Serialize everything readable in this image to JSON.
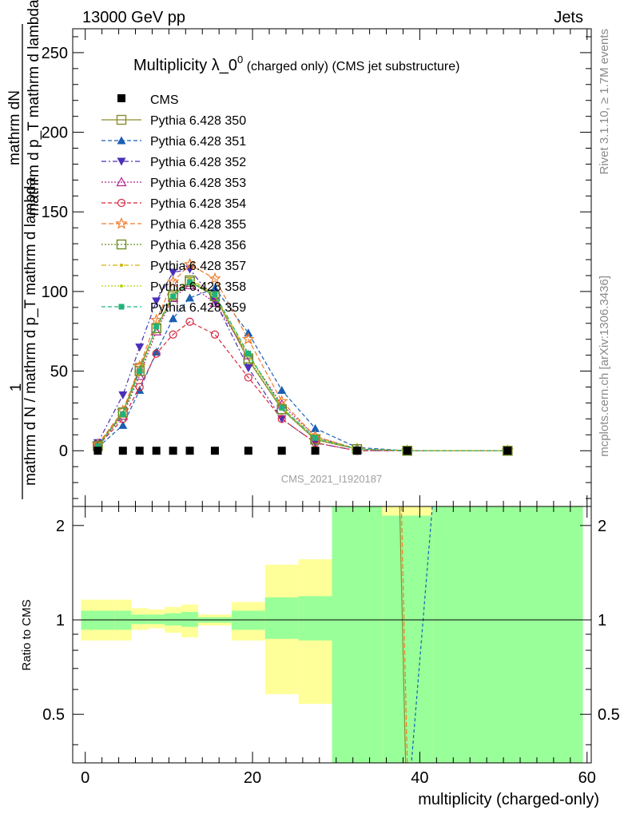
{
  "header": {
    "energy_label": "13000 GeV pp",
    "category_label": "Jets"
  },
  "side_labels": {
    "rivet": "Rivet 3.1.10, ≥ 1.7M events",
    "mcplots": "mcplots.cern.ch [arXiv:1306.3436]"
  },
  "chart_data": [
    {
      "type": "scatter",
      "title_main": "Multiplicity λ_0",
      "title_sup": "0",
      "title_note": " (charged only) (CMS jet substructure)",
      "ylabel_top": "mathrm dN",
      "ylabel_left": "mathrm d p_T mathrm d lambda",
      "ylabel_one": "1",
      "ylabel_bottom": "mathrm d N / mathrm d p_T mathrm d lambda",
      "watermark": "CMS_2021_I1920187",
      "xlim": [
        -1.5,
        60.5
      ],
      "ylim": [
        -35,
        265
      ],
      "yticks": [
        0,
        50,
        100,
        150,
        200,
        250
      ],
      "data_series": {
        "name": "CMS",
        "x": [
          1.5,
          4.5,
          6.5,
          8.5,
          10.5,
          12.5,
          15.5,
          19.5,
          23.5,
          27.5,
          32.5,
          38.5,
          50.5
        ],
        "y": [
          0,
          0,
          0,
          0,
          0,
          0,
          0,
          0,
          0,
          0,
          0,
          0,
          0
        ]
      },
      "x": [
        1.5,
        4.5,
        6.5,
        8.5,
        10.5,
        12.5,
        15.5,
        19.5,
        23.5,
        27.5,
        32.5,
        38.5,
        50.5
      ],
      "series": [
        {
          "name": "Pythia 6.428 350",
          "color": "#8c8c2e",
          "dash": "",
          "marker": "square-open",
          "values": [
            3,
            24,
            52,
            77,
            97,
            106,
            97,
            57,
            26,
            7,
            1,
            0,
            0
          ]
        },
        {
          "name": "Pythia 6.428 351",
          "color": "#1a5fb4",
          "dash": "5,3",
          "marker": "triangle-up",
          "values": [
            2,
            16,
            38,
            62,
            83,
            96,
            102,
            74,
            38,
            14,
            2,
            0,
            0
          ]
        },
        {
          "name": "Pythia 6.428 352",
          "color": "#4b2fb8",
          "dash": "6,3,2,3",
          "marker": "triangle-down",
          "values": [
            5,
            35,
            65,
            94,
            112,
            114,
            94,
            52,
            20,
            5,
            0,
            0,
            0
          ]
        },
        {
          "name": "Pythia 6.428 353",
          "color": "#b2258f",
          "dash": "2,2",
          "marker": "triangle-open",
          "values": [
            3,
            22,
            47,
            75,
            96,
            104,
            93,
            60,
            29,
            9,
            1,
            0,
            0
          ]
        },
        {
          "name": "Pythia 6.428 354",
          "color": "#d7263d",
          "dash": "5,3",
          "marker": "circle-open",
          "values": [
            3,
            20,
            40,
            61,
            73,
            81,
            73,
            46,
            20,
            5,
            0,
            0,
            0
          ]
        },
        {
          "name": "Pythia 6.428 355",
          "color": "#f07b2a",
          "dash": "6,3",
          "marker": "star-open",
          "values": [
            4,
            25,
            53,
            82,
            106,
            117,
            108,
            70,
            31,
            9,
            1,
            0,
            0
          ]
        },
        {
          "name": "Pythia 6.428 356",
          "color": "#6b8e23",
          "dash": "2,2",
          "marker": "square-open",
          "values": [
            3,
            24,
            50,
            77,
            98,
            107,
            97,
            58,
            26,
            7,
            1,
            0,
            0
          ]
        },
        {
          "name": "Pythia 6.428 357",
          "color": "#d4b106",
          "dash": "6,3,2,3",
          "marker": "dot",
          "values": [
            3,
            23,
            50,
            78,
            98,
            108,
            98,
            60,
            27,
            8,
            1,
            0,
            0
          ]
        },
        {
          "name": "Pythia 6.428 358",
          "color": "#b5d415",
          "dash": "2,2",
          "marker": "dot",
          "values": [
            3,
            23,
            49,
            77,
            97,
            106,
            97,
            60,
            27,
            8,
            1,
            0,
            0
          ]
        },
        {
          "name": "Pythia 6.428 359",
          "color": "#20b37a",
          "dash": "5,3",
          "marker": "square",
          "values": [
            3,
            23,
            50,
            78,
            97,
            106,
            98,
            61,
            27,
            8,
            1,
            0,
            0
          ]
        }
      ]
    },
    {
      "type": "area",
      "ylabel": "Ratio to CMS",
      "xlabel": "multiplicity (charged-only)",
      "xlim": [
        -1.5,
        60.5
      ],
      "ylim": [
        0.35,
        2.3
      ],
      "yticks": [
        "0.5",
        "1",
        "2"
      ],
      "ytick_values": [
        0.5,
        1,
        2
      ],
      "xticks": [
        "0",
        "20",
        "40",
        "60"
      ],
      "xtick_values": [
        0,
        20,
        40,
        60
      ],
      "reference_line": 1,
      "bands": [
        {
          "x0": -0.5,
          "x1": 3.5,
          "green_lo": 0.93,
          "green_hi": 1.07,
          "yellow_lo": 0.86,
          "yellow_hi": 1.16
        },
        {
          "x0": 3.5,
          "x1": 5.5,
          "green_lo": 0.93,
          "green_hi": 1.07,
          "yellow_lo": 0.86,
          "yellow_hi": 1.16
        },
        {
          "x0": 5.5,
          "x1": 7.5,
          "green_lo": 0.97,
          "green_hi": 1.04,
          "yellow_lo": 0.93,
          "yellow_hi": 1.09
        },
        {
          "x0": 7.5,
          "x1": 9.5,
          "green_lo": 0.97,
          "green_hi": 1.04,
          "yellow_lo": 0.94,
          "yellow_hi": 1.08
        },
        {
          "x0": 9.5,
          "x1": 11.5,
          "green_lo": 0.96,
          "green_hi": 1.05,
          "yellow_lo": 0.91,
          "yellow_hi": 1.1
        },
        {
          "x0": 11.5,
          "x1": 13.5,
          "green_lo": 0.95,
          "green_hi": 1.06,
          "yellow_lo": 0.88,
          "yellow_hi": 1.12
        },
        {
          "x0": 13.5,
          "x1": 17.5,
          "green_lo": 0.98,
          "green_hi": 1.02,
          "yellow_lo": 0.96,
          "yellow_hi": 1.04
        },
        {
          "x0": 17.5,
          "x1": 21.5,
          "green_lo": 0.93,
          "green_hi": 1.07,
          "yellow_lo": 0.86,
          "yellow_hi": 1.14
        },
        {
          "x0": 21.5,
          "x1": 25.5,
          "green_lo": 0.87,
          "green_hi": 1.18,
          "yellow_lo": 0.58,
          "yellow_hi": 1.5
        },
        {
          "x0": 25.5,
          "x1": 29.5,
          "green_lo": 0.86,
          "green_hi": 1.19,
          "yellow_lo": 0.54,
          "yellow_hi": 1.56
        },
        {
          "x0": 29.5,
          "x1": 35.5,
          "green_lo": 0.35,
          "green_hi": 2.3,
          "yellow_lo": 0.35,
          "yellow_hi": 2.3
        },
        {
          "x0": 35.5,
          "x1": 41.5,
          "green_lo": 0.35,
          "green_hi": 2.15,
          "yellow_lo": 0.35,
          "yellow_hi": 2.3
        },
        {
          "x0": 41.5,
          "x1": 59.5,
          "green_lo": 0.35,
          "green_hi": 2.3,
          "yellow_lo": 0.35,
          "yellow_hi": 2.3
        }
      ],
      "ratio_lines": [
        {
          "color": "#8c8c2e",
          "dash": "",
          "x": [
            37.6,
            38.3
          ],
          "y": [
            2.3,
            0.35
          ]
        },
        {
          "color": "#f07b2a",
          "dash": "6,3",
          "x": [
            37.8,
            38.5
          ],
          "y": [
            2.3,
            0.35
          ]
        },
        {
          "color": "#1a5fb4",
          "dash": "4,3",
          "x": [
            41.5,
            39.0
          ],
          "y": [
            2.3,
            0.35
          ]
        }
      ]
    }
  ]
}
